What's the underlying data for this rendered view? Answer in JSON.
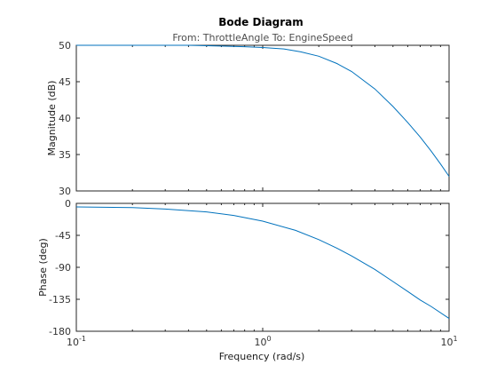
{
  "chart_data": {
    "type": "line",
    "title": "Bode Diagram",
    "subtitle": "From: ThrottleAngle  To: EngineSpeed",
    "xlabel": "Frequency  (rad/s)",
    "xscale": "log",
    "xlim": [
      0.1,
      10
    ],
    "x_ticks": [
      {
        "base": "10",
        "exp": "-1",
        "value": 0.1
      },
      {
        "base": "10",
        "exp": "0",
        "value": 1
      },
      {
        "base": "10",
        "exp": "1",
        "value": 10
      }
    ],
    "panels": [
      {
        "name": "magnitude",
        "ylabel": "Magnitude (dB)",
        "ylim": [
          30,
          50
        ],
        "yticks": [
          30,
          35,
          40,
          45,
          50
        ],
        "x": [
          0.1,
          0.2,
          0.4,
          0.6,
          0.8,
          1.0,
          1.3,
          1.6,
          2.0,
          2.5,
          3.0,
          4.0,
          5.0,
          6.0,
          7.0,
          8.0,
          9.0,
          10.0
        ],
        "y": [
          50.0,
          50.0,
          50.0,
          49.9,
          49.8,
          49.7,
          49.5,
          49.1,
          48.5,
          47.5,
          46.4,
          44.0,
          41.6,
          39.4,
          37.4,
          35.5,
          33.7,
          32.0
        ]
      },
      {
        "name": "phase",
        "ylabel": "Phase (deg)",
        "ylim": [
          -180,
          0
        ],
        "yticks": [
          0,
          -45,
          -90,
          -135,
          -180
        ],
        "x": [
          0.1,
          0.2,
          0.3,
          0.5,
          0.7,
          1.0,
          1.5,
          2.0,
          2.5,
          3.0,
          4.0,
          5.0,
          6.0,
          7.0,
          8.0,
          10.0
        ],
        "y": [
          -5,
          -6,
          -8,
          -12,
          -17,
          -25,
          -38,
          -51,
          -63,
          -74,
          -93,
          -110,
          -124,
          -136,
          -145,
          -162
        ]
      }
    ],
    "grid": false
  }
}
